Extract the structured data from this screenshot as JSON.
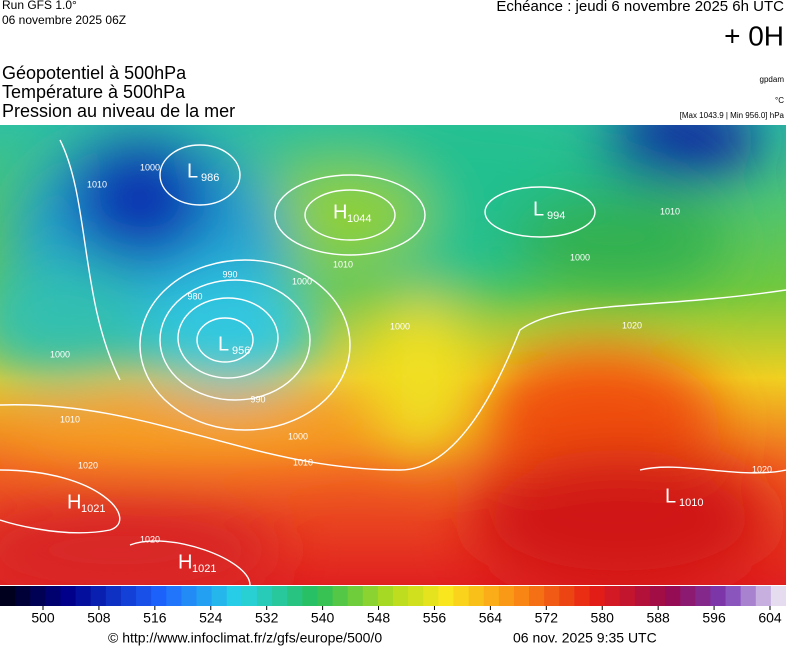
{
  "header": {
    "run": "Run GFS 1.0°",
    "run_date": "06 novembre 2025 06Z",
    "forecast": "Échéance : jeudi 6 novembre 2025 6h UTC",
    "lead": "+ 0H"
  },
  "fields": [
    "Géopotentiel à 500hPa",
    "Température à 500hPa",
    "Pression au niveau de la mer"
  ],
  "units": {
    "geopotential": "gpdam",
    "temperature": "°C",
    "pressure": "[Max 1043.9 | Min 956.0] hPa"
  },
  "centers": [
    {
      "type": "L",
      "value": 986
    },
    {
      "type": "H",
      "value": 1044
    },
    {
      "type": "L",
      "value": 994
    },
    {
      "type": "L",
      "value": 956
    },
    {
      "type": "H",
      "value": 1021
    },
    {
      "type": "H",
      "value": 1021
    },
    {
      "type": "L",
      "value": 1010
    }
  ],
  "isobar_labels": [
    1010,
    1000,
    990,
    980,
    1000,
    1010,
    1000,
    990,
    1000,
    1010,
    1020,
    1020,
    1020,
    1000,
    1010,
    1010,
    1000,
    1020
  ],
  "colorbar": {
    "ticks": [
      500,
      508,
      516,
      524,
      532,
      540,
      548,
      556,
      564,
      572,
      580,
      588,
      596,
      604
    ]
  },
  "footer": {
    "source": "© http://www.infoclimat.fr/z/gfs/europe/500/0",
    "generated": "06 nov. 2025  9:35 UTC"
  }
}
